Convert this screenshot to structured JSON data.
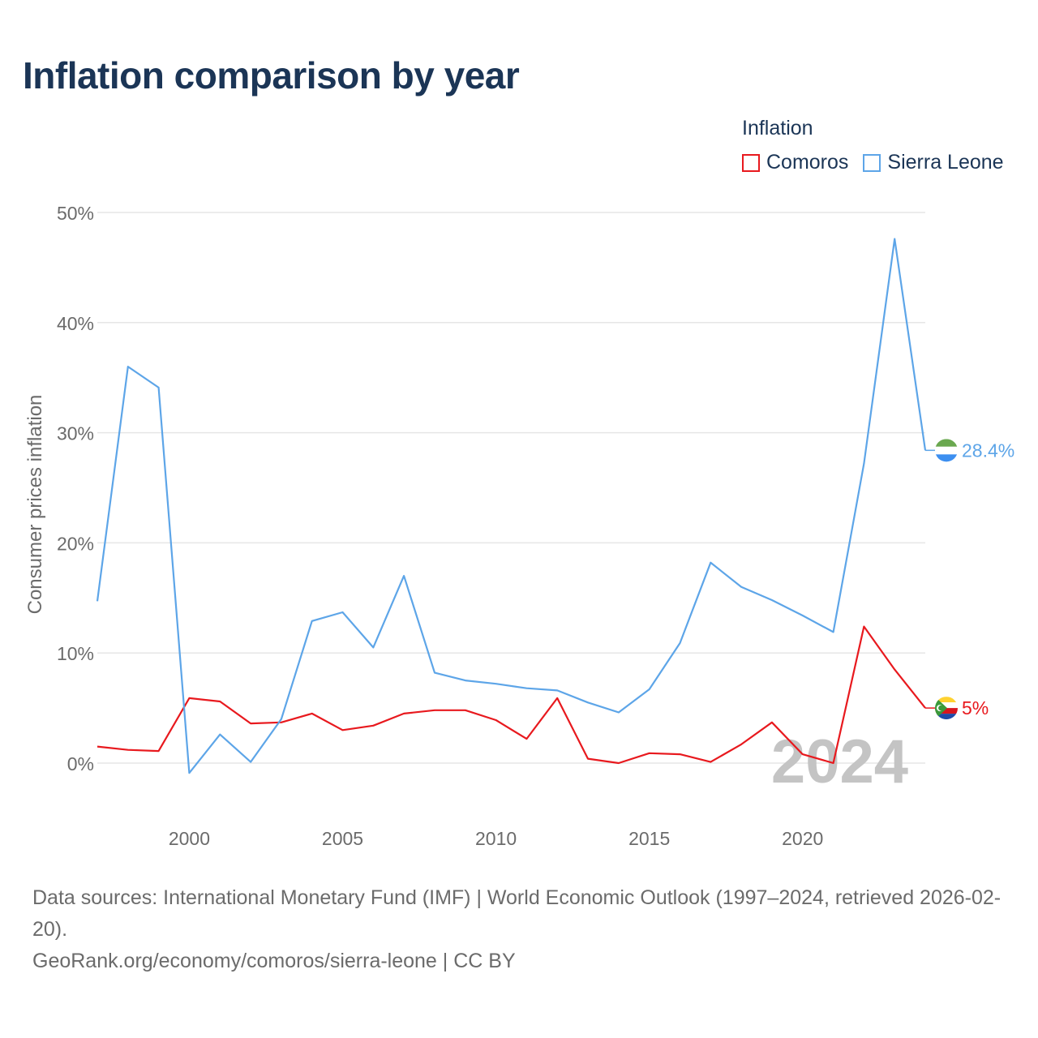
{
  "title": "Inflation comparison by year",
  "legend": {
    "title": "Inflation",
    "items": [
      {
        "label": "Comoros",
        "color": "#e8191e"
      },
      {
        "label": "Sierra Leone",
        "color": "#5da5e8"
      }
    ]
  },
  "year_watermark": "2024",
  "footer": {
    "sources": "Data sources: International Monetary Fund (IMF) | World Economic Outlook (1997–2024, retrieved 2026-02-20).",
    "credit": "GeoRank.org/economy/comoros/sierra-leone | CC BY"
  },
  "chart_data": {
    "type": "line",
    "title": "Inflation comparison by year",
    "xlabel": "",
    "ylabel": "Consumer prices inflation",
    "ylim": [
      -3,
      52
    ],
    "yticks": [
      0,
      10,
      20,
      30,
      40,
      50
    ],
    "ytick_labels": [
      "0%",
      "10%",
      "20%",
      "30%",
      "40%",
      "50%"
    ],
    "xlim": [
      1997,
      2024
    ],
    "xticks": [
      2000,
      2005,
      2010,
      2015,
      2020
    ],
    "xtick_labels": [
      "2000",
      "2005",
      "2010",
      "2015",
      "2020"
    ],
    "grid": true,
    "legend_position": "top-right",
    "x": [
      1997,
      1998,
      1999,
      2000,
      2001,
      2002,
      2003,
      2004,
      2005,
      2006,
      2007,
      2008,
      2009,
      2010,
      2011,
      2012,
      2013,
      2014,
      2015,
      2016,
      2017,
      2018,
      2019,
      2020,
      2021,
      2022,
      2023,
      2024
    ],
    "series": [
      {
        "name": "Comoros",
        "color": "#e8191e",
        "end_label": "5%",
        "values": [
          1.5,
          1.2,
          1.1,
          5.9,
          5.6,
          3.6,
          3.7,
          4.5,
          3.0,
          3.4,
          4.5,
          4.8,
          4.8,
          3.9,
          2.2,
          5.9,
          0.4,
          0.0,
          0.9,
          0.8,
          0.1,
          1.7,
          3.7,
          0.8,
          0.0,
          12.4,
          8.5,
          5.0
        ]
      },
      {
        "name": "Sierra Leone",
        "color": "#5da5e8",
        "end_label": "28.4%",
        "values": [
          14.7,
          36.0,
          34.1,
          -0.9,
          2.6,
          0.1,
          4.0,
          12.9,
          13.7,
          10.5,
          17.0,
          8.2,
          7.5,
          7.2,
          6.8,
          6.6,
          5.5,
          4.6,
          6.7,
          10.9,
          18.2,
          16.0,
          14.8,
          13.4,
          11.9,
          27.2,
          47.6,
          28.4
        ]
      }
    ]
  }
}
